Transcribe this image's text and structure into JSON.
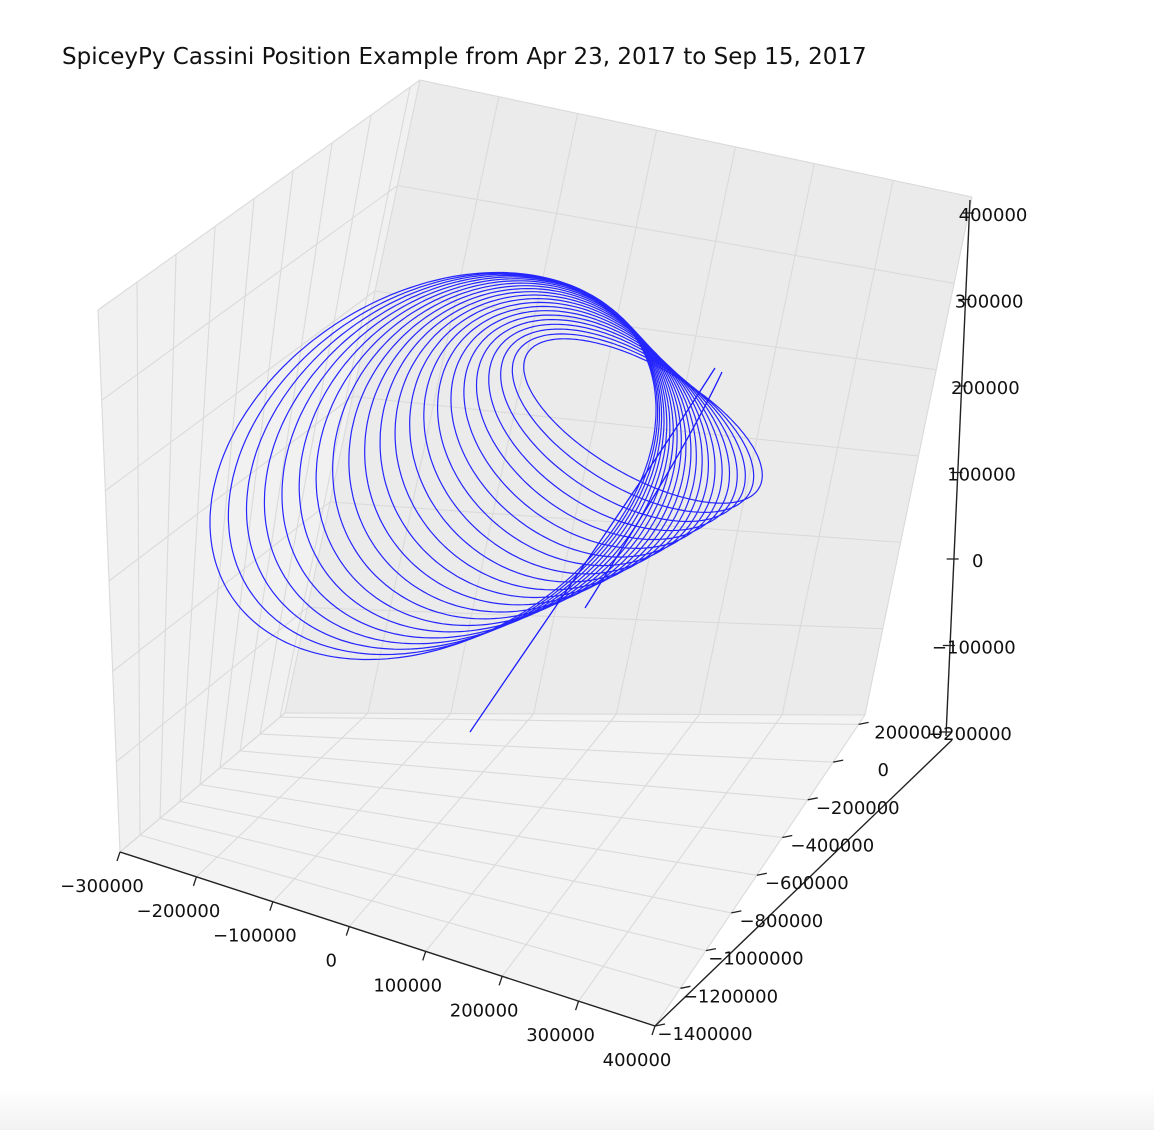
{
  "chart_data": {
    "type": "line",
    "projection": "3d",
    "title": "SpiceyPy Cassini Position Example from Apr 23, 2017 to Sep 15, 2017",
    "xlabel": "",
    "ylabel": "",
    "zlabel": "",
    "grid": true,
    "x_axis": {
      "ticks": [
        -300000,
        -200000,
        -100000,
        0,
        100000,
        200000,
        300000,
        400000
      ],
      "tick_labels": [
        "−300000",
        "−200000",
        "−100000",
        "0",
        "100000",
        "200000",
        "300000",
        "400000"
      ]
    },
    "y_axis": {
      "ticks": [
        -1400000,
        -1200000,
        -1000000,
        -800000,
        -600000,
        -400000,
        -200000,
        0,
        200000
      ],
      "tick_labels": [
        "−1400000",
        "−1200000",
        "−1000000",
        "−800000",
        "−600000",
        "−400000",
        "−200000",
        "0",
        "200000"
      ]
    },
    "z_axis": {
      "ticks": [
        -200000,
        -100000,
        0,
        100000,
        200000,
        300000,
        400000
      ],
      "tick_labels": [
        "−200000",
        "−100000",
        "0",
        "100000",
        "200000",
        "300000",
        "400000"
      ]
    },
    "series": [
      {
        "color": "#1a1aff",
        "orbit_count": 22
      }
    ]
  }
}
